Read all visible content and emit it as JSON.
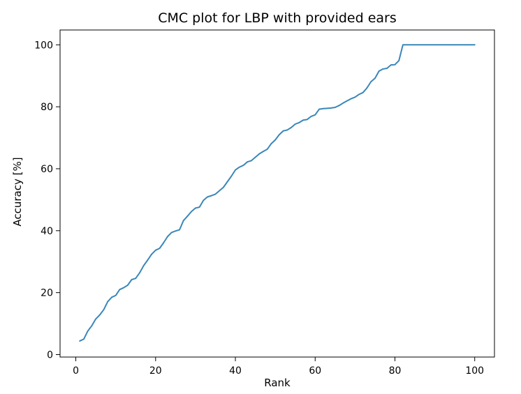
{
  "chart_data": {
    "type": "line",
    "title": "CMC plot for LBP with provided ears",
    "xlabel": "Rank",
    "ylabel": "Accuracy [%]",
    "xlim": [
      -3.95,
      104.95
    ],
    "ylim": [
      -0.79,
      104.79
    ],
    "xticks": [
      0,
      20,
      40,
      60,
      80,
      100
    ],
    "yticks": [
      0,
      20,
      40,
      60,
      80,
      100
    ],
    "grid": false,
    "legend": "none",
    "line_color": "#3a87b9",
    "series": [
      {
        "x": [
          1,
          2,
          3,
          4,
          5,
          6,
          7,
          8,
          9,
          10,
          11,
          12,
          13,
          14,
          15,
          16,
          17,
          18,
          19,
          20,
          21,
          22,
          23,
          24,
          25,
          26,
          27,
          28,
          29,
          30,
          31,
          32,
          33,
          34,
          35,
          36,
          37,
          38,
          39,
          40,
          41,
          42,
          43,
          44,
          45,
          46,
          47,
          48,
          49,
          50,
          51,
          52,
          53,
          54,
          55,
          56,
          57,
          58,
          59,
          60,
          61,
          62,
          63,
          64,
          65,
          66,
          67,
          68,
          69,
          70,
          71,
          72,
          73,
          74,
          75,
          76,
          77,
          78,
          79,
          80,
          81,
          82,
          83,
          84,
          85,
          86,
          87,
          88,
          89,
          90,
          91,
          92,
          93,
          94,
          95,
          96,
          97,
          98,
          99,
          100
        ],
        "y": [
          4.4,
          5.0,
          7.6,
          9.3,
          11.5,
          12.8,
          14.5,
          17.1,
          18.5,
          19.1,
          21.0,
          21.6,
          22.4,
          24.2,
          24.6,
          26.4,
          28.7,
          30.5,
          32.4,
          33.7,
          34.3,
          36.1,
          38.1,
          39.4,
          39.9,
          40.3,
          43.3,
          44.7,
          46.2,
          47.3,
          47.6,
          49.8,
          50.9,
          51.3,
          51.8,
          52.9,
          54.0,
          55.8,
          57.6,
          59.6,
          60.5,
          61.1,
          62.2,
          62.6,
          63.7,
          64.8,
          65.6,
          66.3,
          68.1,
          69.3,
          71.0,
          72.2,
          72.5,
          73.3,
          74.4,
          74.9,
          75.7,
          75.9,
          76.9,
          77.4,
          79.2,
          79.4,
          79.5,
          79.6,
          79.8,
          80.4,
          81.2,
          81.9,
          82.6,
          83.1,
          84.0,
          84.6,
          86.1,
          88.1,
          89.2,
          91.5,
          92.2,
          92.4,
          93.5,
          93.6,
          94.9,
          100,
          100,
          100,
          100,
          100,
          100,
          100,
          100,
          100,
          100,
          100,
          100,
          100,
          100,
          100,
          100,
          100,
          100,
          100
        ]
      }
    ]
  }
}
